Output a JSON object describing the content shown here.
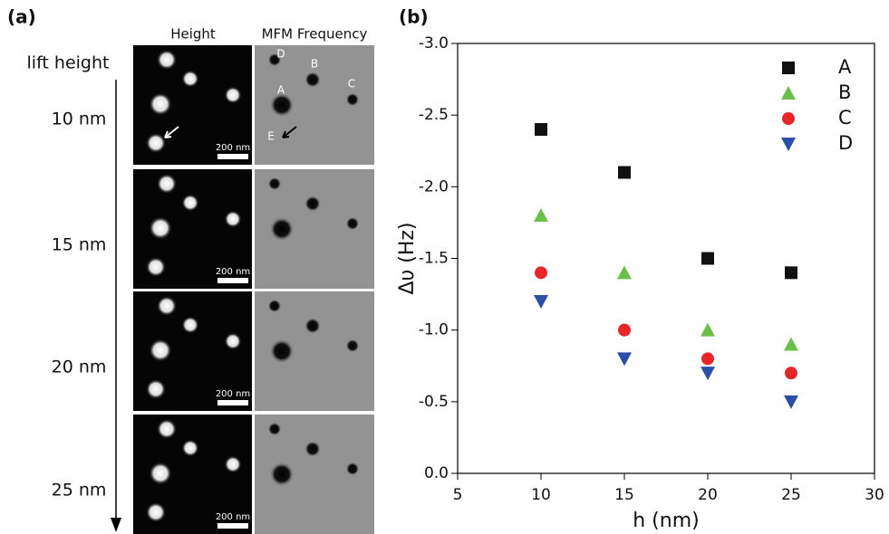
{
  "panel_a": {
    "label": "(a)",
    "columns": [
      "Height",
      "MFM Frequency"
    ],
    "row_title": "lift height",
    "rows": [
      "10 nm",
      "15 nm",
      "20 nm",
      "25 nm"
    ],
    "scale_bar": "200 nm",
    "particles": [
      "D",
      "B",
      "A",
      "C",
      "E"
    ]
  },
  "chart_data": {
    "type": "scatter",
    "panel_label": "(b)",
    "x_label": "h (nm)",
    "y_label": "Δυ (Hz)",
    "x": [
      10,
      15,
      20,
      25
    ],
    "series": [
      {
        "name": "A",
        "color": "#111111",
        "marker": "square",
        "values": [
          -2.4,
          -2.1,
          -1.5,
          -1.4
        ]
      },
      {
        "name": "B",
        "color": "#6cc04a",
        "marker": "triangle-up",
        "values": [
          -1.8,
          -1.4,
          -1.0,
          -0.9
        ]
      },
      {
        "name": "C",
        "color": "#e8262a",
        "marker": "circle",
        "values": [
          -1.4,
          -1.0,
          -0.8,
          -0.7
        ]
      },
      {
        "name": "D",
        "color": "#2b4fa6",
        "marker": "triangle-down",
        "values": [
          -1.2,
          -0.8,
          -0.7,
          -0.5
        ]
      }
    ],
    "xlim": [
      5,
      30
    ],
    "xticks": [
      5,
      10,
      15,
      20,
      25,
      30
    ],
    "ylim": [
      0,
      -3
    ],
    "yticks": [
      {
        "value": 0,
        "label": "0.0"
      },
      {
        "value": -0.5,
        "label": "-0.5"
      },
      {
        "value": -1,
        "label": "-1.0"
      },
      {
        "value": -1.5,
        "label": "-1.5"
      },
      {
        "value": -2,
        "label": "-2.0"
      },
      {
        "value": -2.5,
        "label": "-2.5"
      },
      {
        "value": -3,
        "label": "-3.0"
      }
    ],
    "legend": "top-right"
  }
}
